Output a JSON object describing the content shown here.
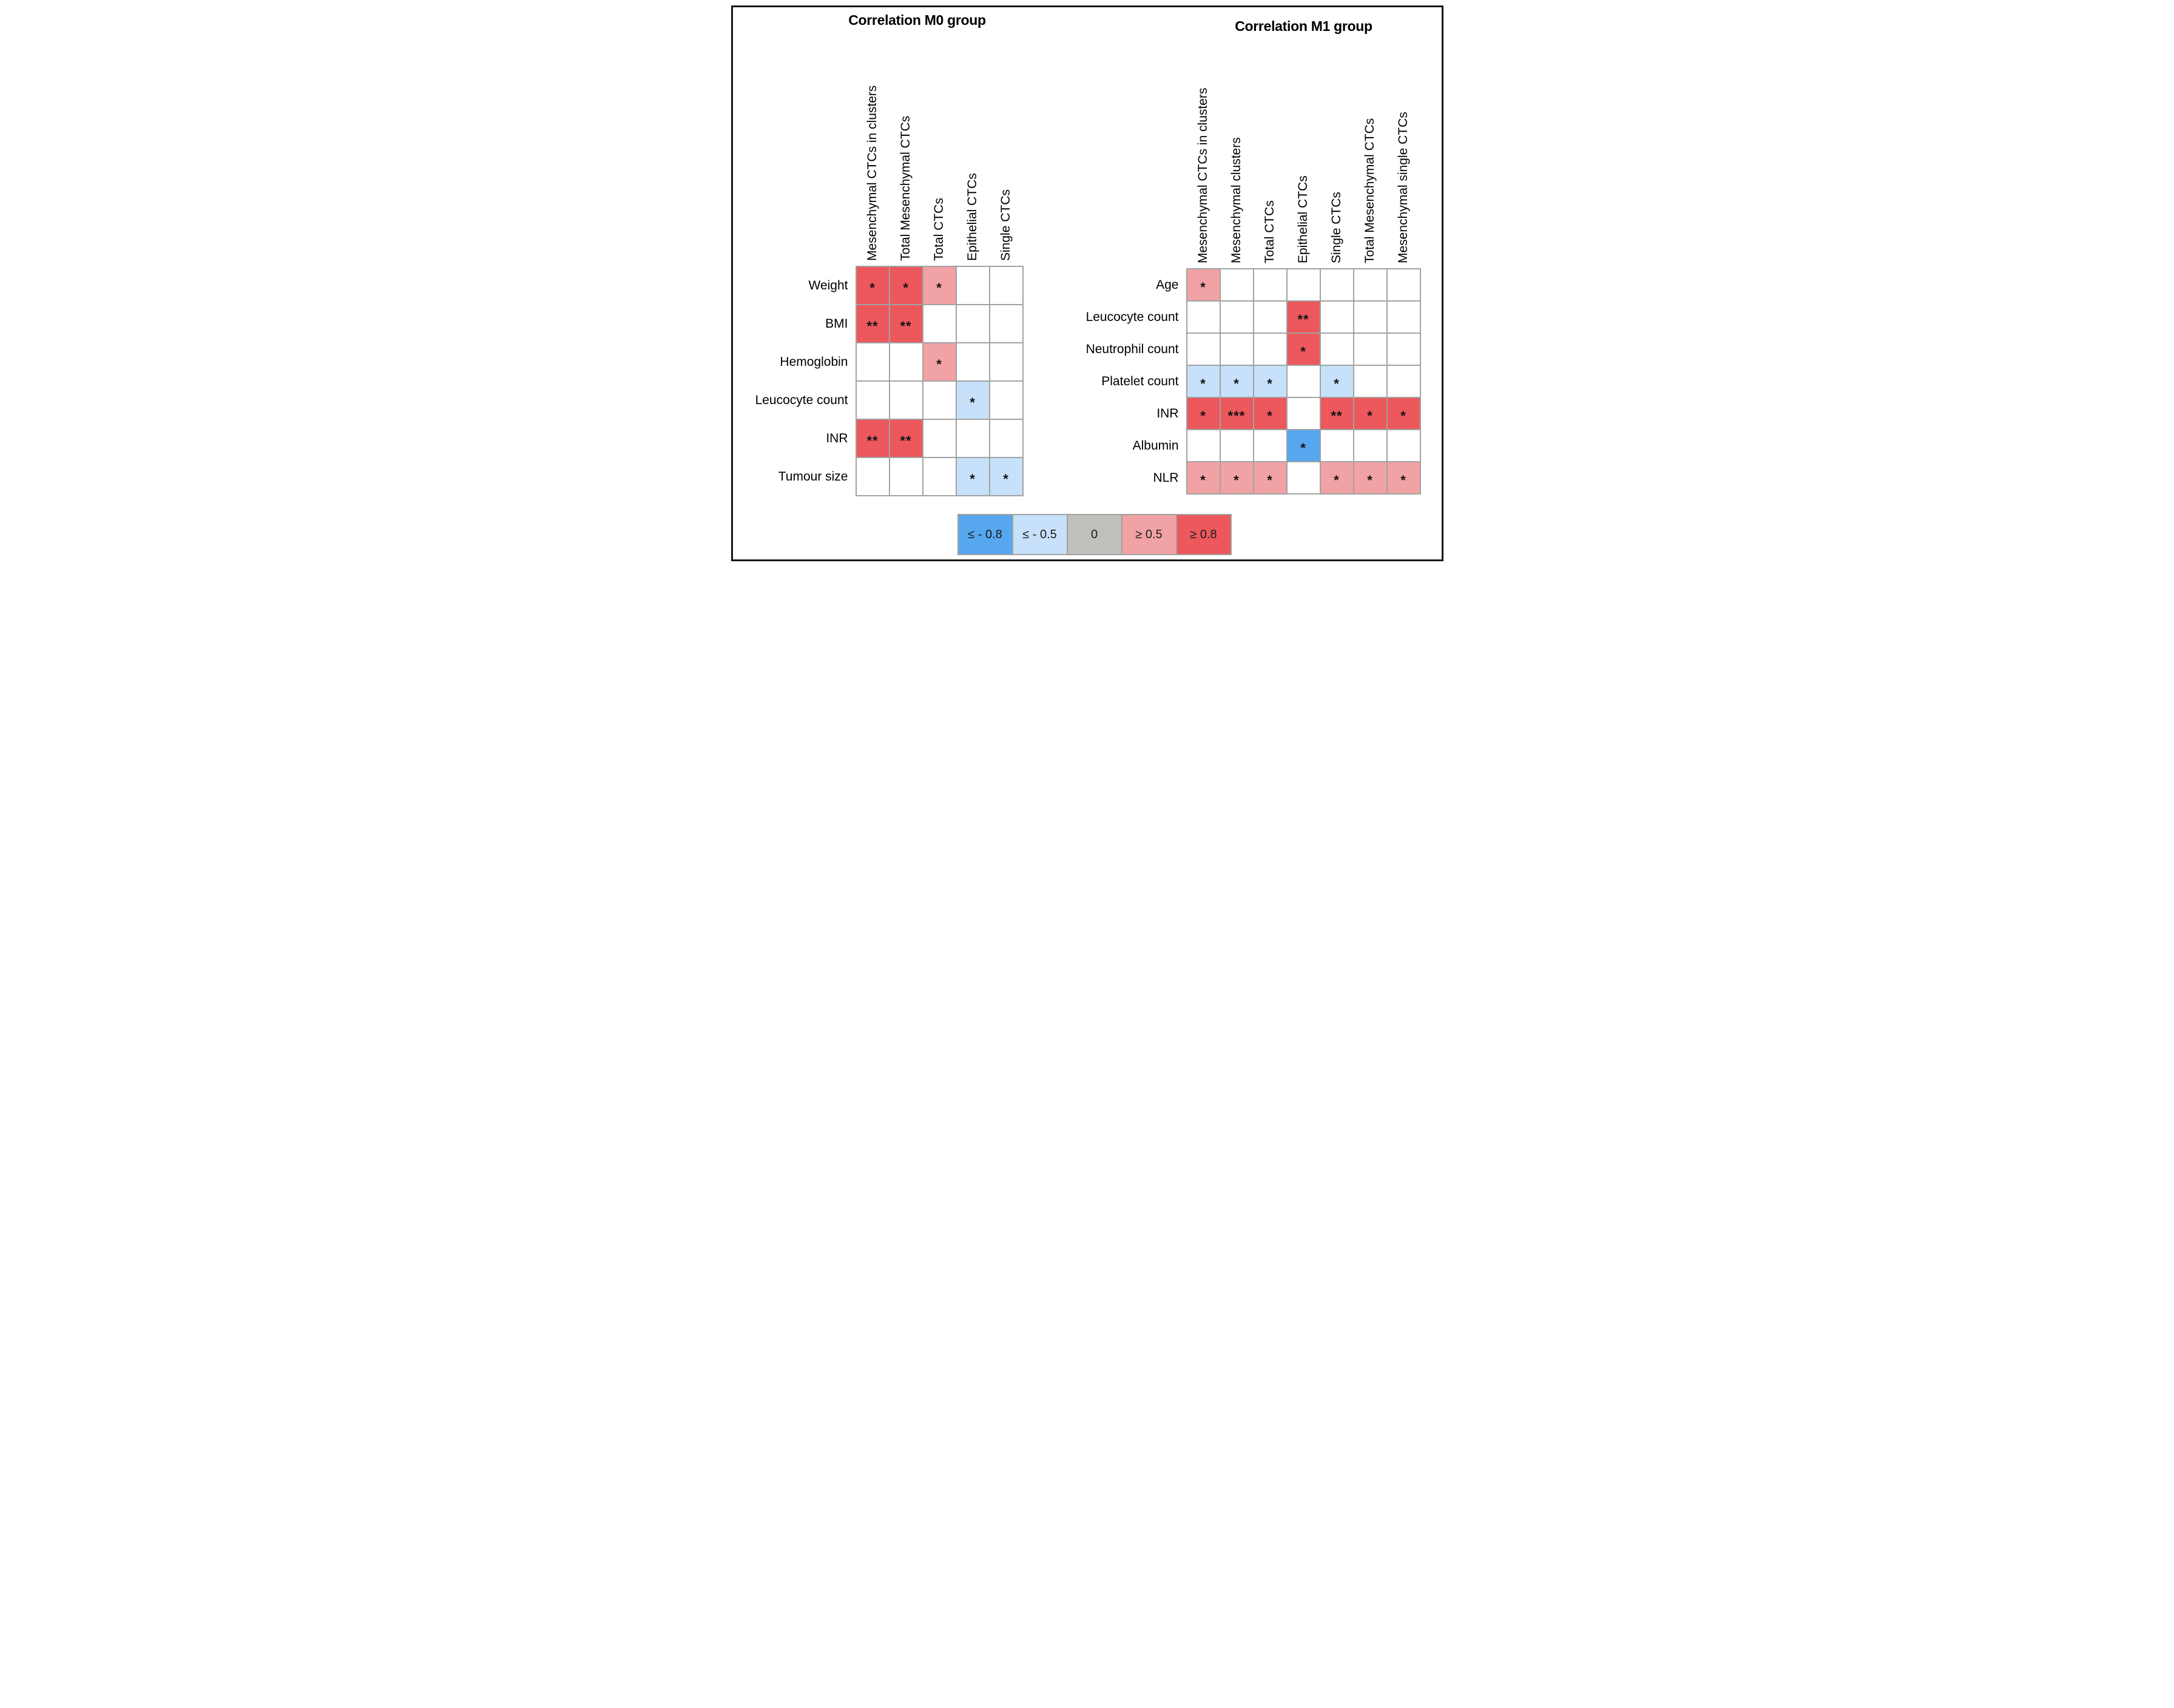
{
  "chart_data": [
    {
      "type": "heatmap",
      "group": "M0",
      "title": "Correlation M0 group",
      "columns": [
        "Mesenchymal CTCs in clusters",
        "Total Mesenchymal CTCs",
        "Total CTCs",
        "Epithelial CTCs",
        "Single CTCs"
      ],
      "rows": [
        "Weight",
        "BMI",
        "Hemoglobin",
        "Leucocyte count",
        "INR",
        "Tumour size"
      ],
      "cells": [
        [
          {
            "bin": "≥0.8",
            "sig": "*"
          },
          {
            "bin": "≥0.8",
            "sig": "*"
          },
          {
            "bin": "≥0.5",
            "sig": "*"
          },
          null,
          null
        ],
        [
          {
            "bin": "≥0.8",
            "sig": "**"
          },
          {
            "bin": "≥0.8",
            "sig": "**"
          },
          null,
          null,
          null
        ],
        [
          null,
          null,
          {
            "bin": "≥0.5",
            "sig": "*"
          },
          null,
          null
        ],
        [
          null,
          null,
          null,
          {
            "bin": "≤-0.5",
            "sig": "*"
          },
          null
        ],
        [
          {
            "bin": "≥0.8",
            "sig": "**"
          },
          {
            "bin": "≥0.8",
            "sig": "**"
          },
          null,
          null,
          null
        ],
        [
          null,
          null,
          null,
          {
            "bin": "≤-0.5",
            "sig": "*"
          },
          {
            "bin": "≤-0.5",
            "sig": "*"
          }
        ]
      ]
    },
    {
      "type": "heatmap",
      "group": "M1",
      "title": "Correlation M1 group",
      "columns": [
        "Mesenchymal CTCs in clusters",
        "Mesenchymal clusters",
        "Total CTCs",
        "Epithelial CTCs",
        "Single CTCs",
        "Total Mesenchymal CTCs",
        "Mesenchymal single CTCs"
      ],
      "rows": [
        "Age",
        "Leucocyte count",
        "Neutrophil count",
        "Platelet count",
        "INR",
        "Albumin",
        "NLR"
      ],
      "cells": [
        [
          {
            "bin": "≥0.5",
            "sig": "*"
          },
          null,
          null,
          null,
          null,
          null,
          null
        ],
        [
          null,
          null,
          null,
          {
            "bin": "≥0.8",
            "sig": "**"
          },
          null,
          null,
          null
        ],
        [
          null,
          null,
          null,
          {
            "bin": "≥0.8",
            "sig": "*"
          },
          null,
          null,
          null
        ],
        [
          {
            "bin": "≤-0.5",
            "sig": "*"
          },
          {
            "bin": "≤-0.5",
            "sig": "*"
          },
          {
            "bin": "≤-0.5",
            "sig": "*"
          },
          null,
          {
            "bin": "≤-0.5",
            "sig": "*"
          },
          null,
          null
        ],
        [
          {
            "bin": "≥0.8",
            "sig": "*"
          },
          {
            "bin": "≥0.8",
            "sig": "***"
          },
          {
            "bin": "≥0.8",
            "sig": "*"
          },
          null,
          {
            "bin": "≥0.8",
            "sig": "**"
          },
          {
            "bin": "≥0.8",
            "sig": "*"
          },
          {
            "bin": "≥0.8",
            "sig": "*"
          }
        ],
        [
          null,
          null,
          null,
          {
            "bin": "≤-0.8",
            "sig": "*"
          },
          null,
          null,
          null
        ],
        [
          {
            "bin": "≥0.5",
            "sig": "*"
          },
          {
            "bin": "≥0.5",
            "sig": "*"
          },
          {
            "bin": "≥0.5",
            "sig": "*"
          },
          null,
          {
            "bin": "≥0.5",
            "sig": "*"
          },
          {
            "bin": "≥0.5",
            "sig": "*"
          },
          {
            "bin": "≥0.5",
            "sig": "*"
          }
        ]
      ]
    }
  ],
  "legend": {
    "items": [
      {
        "label": "≤ - 0.8",
        "bin": "≤-0.8"
      },
      {
        "label": "≤ - 0.5",
        "bin": "≤-0.5"
      },
      {
        "label": "0",
        "bin": "0"
      },
      {
        "label": "≥ 0.5",
        "bin": "≥0.5"
      },
      {
        "label": "≥ 0.8",
        "bin": "≥0.8"
      }
    ],
    "colors": {
      "≤-0.8": "#57a7ee",
      "≤-0.5": "#c6e1f9",
      "0": "#bfbfbc",
      "≥0.5": "#f1a2a4",
      "≥0.8": "#ec585c"
    }
  }
}
